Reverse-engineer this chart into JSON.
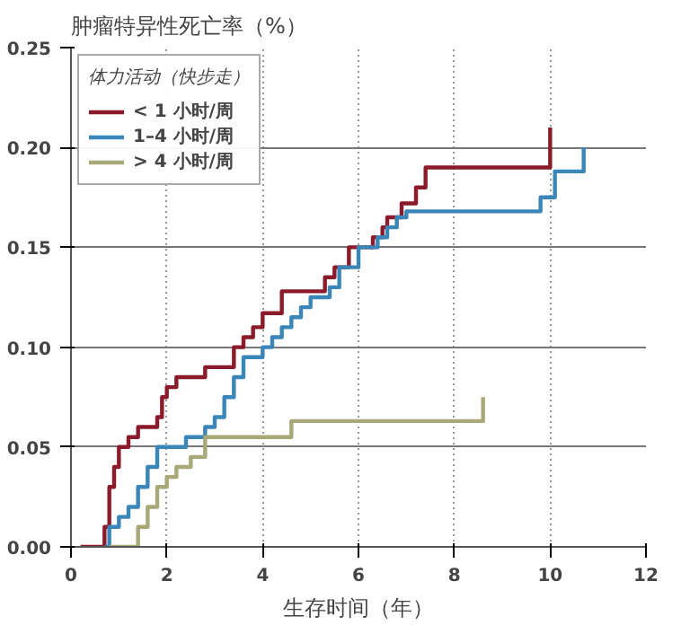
{
  "chart_data": {
    "type": "step",
    "ylabel": "肿瘤特异性死亡率（%）",
    "xlabel": "生存时间（年）",
    "legend_title": "体力活动（快步走）",
    "legend": "top left",
    "grid": true,
    "line_style": "solid",
    "xlim": [
      0,
      12
    ],
    "xticks": [
      0,
      2,
      4,
      6,
      8,
      10,
      12
    ],
    "ylim": [
      0,
      0.25
    ],
    "yticks": [
      {
        "value": 0,
        "label": "0.00"
      },
      0.05,
      {
        "value": 0.1,
        "label": "0.10"
      },
      0.15,
      {
        "value": 0.2,
        "label": "0.20"
      },
      0.25
    ],
    "series": [
      {
        "name": "< 1 小时/周",
        "color": "#8b1a2a",
        "x": [
          0.2,
          0.7,
          0.8,
          0.9,
          1.0,
          1.2,
          1.4,
          1.8,
          1.9,
          2.0,
          2.2,
          2.8,
          3.4,
          3.6,
          3.8,
          4.0,
          4.4,
          5.3,
          5.5,
          5.8,
          6.3,
          6.5,
          6.6,
          6.9,
          7.2,
          7.4,
          10.0,
          10.0
        ],
        "values": [
          0,
          0.01,
          0.03,
          0.04,
          0.05,
          0.055,
          0.06,
          0.065,
          0.075,
          0.08,
          0.085,
          0.09,
          0.1,
          0.105,
          0.11,
          0.117,
          0.128,
          0.135,
          0.14,
          0.15,
          0.155,
          0.16,
          0.165,
          0.172,
          0.18,
          0.19,
          0.19,
          0.21
        ]
      },
      {
        "name": "1–4 小时/周",
        "color": "#3a86b8",
        "x": [
          0.7,
          0.8,
          1.0,
          1.2,
          1.4,
          1.6,
          1.8,
          2.4,
          2.8,
          3.0,
          3.2,
          3.4,
          3.6,
          4.0,
          4.2,
          4.4,
          4.6,
          4.8,
          5.0,
          5.4,
          5.6,
          6.0,
          6.4,
          6.6,
          6.8,
          7.0,
          9.8,
          10.1,
          10.7,
          10.7
        ],
        "values": [
          0,
          0.01,
          0.015,
          0.02,
          0.03,
          0.04,
          0.05,
          0.055,
          0.06,
          0.065,
          0.075,
          0.085,
          0.095,
          0.1,
          0.105,
          0.11,
          0.115,
          0.12,
          0.125,
          0.13,
          0.14,
          0.15,
          0.155,
          0.16,
          0.165,
          0.168,
          0.175,
          0.188,
          0.188,
          0.2
        ]
      },
      {
        "name": "> 4 小时/周",
        "color": "#a8a878",
        "x": [
          0.8,
          1.4,
          1.6,
          1.8,
          2.0,
          2.2,
          2.5,
          2.8,
          4.6,
          8.6,
          8.6
        ],
        "values": [
          0,
          0.01,
          0.02,
          0.03,
          0.035,
          0.04,
          0.045,
          0.055,
          0.063,
          0.063,
          0.075
        ]
      }
    ]
  }
}
